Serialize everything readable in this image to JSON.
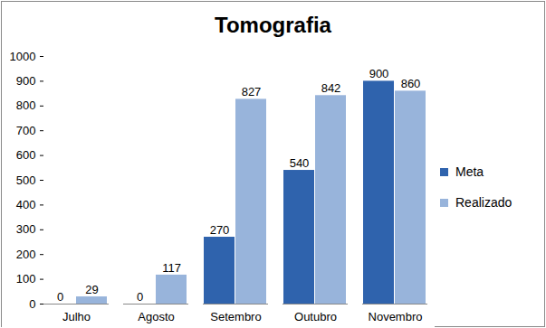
{
  "chart_data": {
    "type": "bar",
    "title": "Tomografia",
    "categories": [
      "Julho",
      "Agosto",
      "Setembro",
      "Outubro",
      "Novembro"
    ],
    "series": [
      {
        "name": "Meta",
        "color": "#2f63ad",
        "values": [
          0,
          0,
          270,
          540,
          900
        ]
      },
      {
        "name": "Realizado",
        "color": "#98b4db",
        "values": [
          29,
          117,
          827,
          842,
          860
        ]
      }
    ],
    "ylim": [
      0,
      1000
    ],
    "yticks": [
      0,
      100,
      200,
      300,
      400,
      500,
      600,
      700,
      800,
      900,
      1000
    ],
    "grid": false,
    "legend": "right",
    "data_labels": true
  }
}
